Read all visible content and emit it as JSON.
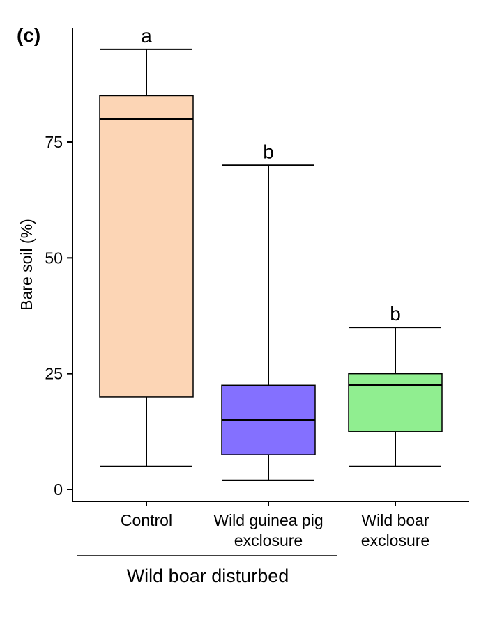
{
  "panel_label": "(c)",
  "chart_data": {
    "type": "box",
    "ylabel": "Bare soil (%)",
    "xlabel": "",
    "ylim": [
      -5,
      100
    ],
    "yticks": [
      0,
      25,
      50,
      75
    ],
    "group_label": "Wild boar disturbed",
    "categories": [
      {
        "label_lines": [
          "Control"
        ],
        "whisker_low": 5,
        "q1": 20,
        "median": 80,
        "q3": 85,
        "whisker_high": 95,
        "letter": "a",
        "color": "#FCD5B5"
      },
      {
        "label_lines": [
          "Wild guinea pig",
          "exclosure"
        ],
        "whisker_low": 2,
        "q1": 7.5,
        "median": 15,
        "q3": 22.5,
        "whisker_high": 70,
        "letter": "b",
        "color": "#8470FF"
      },
      {
        "label_lines": [
          "Wild boar",
          "exclosure"
        ],
        "whisker_low": 5,
        "q1": 12.5,
        "median": 22.5,
        "q3": 25,
        "whisker_high": 35,
        "letter": "b",
        "color": "#90EE90"
      }
    ]
  }
}
